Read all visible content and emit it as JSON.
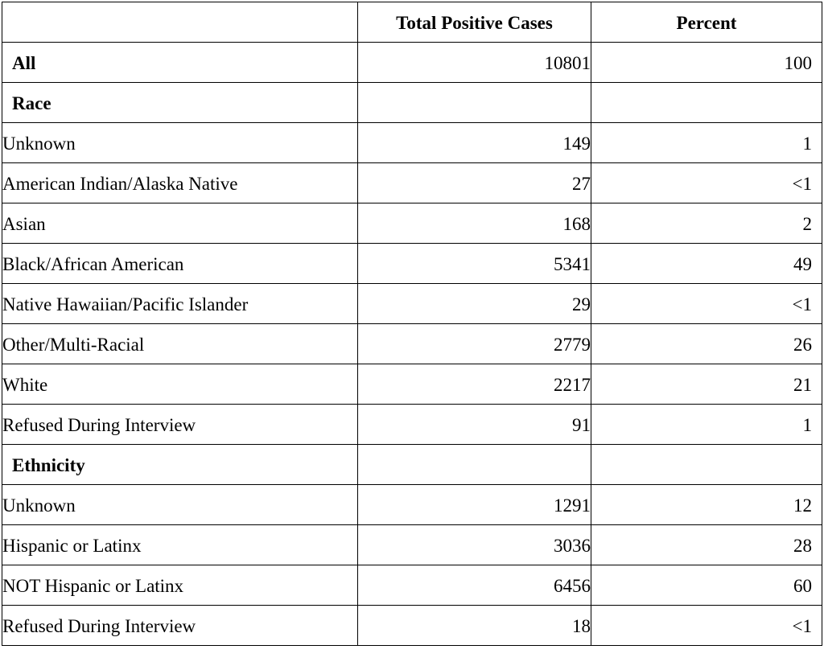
{
  "table": {
    "headers": [
      "",
      "Total Positive Cases",
      "Percent"
    ],
    "rows": [
      {
        "label": "All",
        "cases": "10801",
        "percent": "100",
        "kind": "section"
      },
      {
        "label": "Race",
        "cases": "",
        "percent": "",
        "kind": "section"
      },
      {
        "label": "Unknown",
        "cases": "149",
        "percent": "1",
        "kind": "item"
      },
      {
        "label": "American Indian/Alaska Native",
        "cases": "27",
        "percent": "<1",
        "kind": "item"
      },
      {
        "label": "Asian",
        "cases": "168",
        "percent": "2",
        "kind": "item"
      },
      {
        "label": "Black/African American",
        "cases": "5341",
        "percent": "49",
        "kind": "item"
      },
      {
        "label": "Native Hawaiian/Pacific Islander",
        "cases": "29",
        "percent": "<1",
        "kind": "item"
      },
      {
        "label": "Other/Multi-Racial",
        "cases": "2779",
        "percent": "26",
        "kind": "item"
      },
      {
        "label": "White",
        "cases": "2217",
        "percent": "21",
        "kind": "item"
      },
      {
        "label": "Refused During Interview",
        "cases": "91",
        "percent": "1",
        "kind": "item"
      },
      {
        "label": "Ethnicity",
        "cases": "",
        "percent": "",
        "kind": "section"
      },
      {
        "label": "Unknown",
        "cases": "1291",
        "percent": "12",
        "kind": "item"
      },
      {
        "label": "Hispanic or Latinx",
        "cases": "3036",
        "percent": "28",
        "kind": "item"
      },
      {
        "label": "NOT Hispanic or Latinx",
        "cases": "6456",
        "percent": "60",
        "kind": "item"
      },
      {
        "label": "Refused During Interview",
        "cases": "18",
        "percent": "<1",
        "kind": "item"
      }
    ]
  }
}
